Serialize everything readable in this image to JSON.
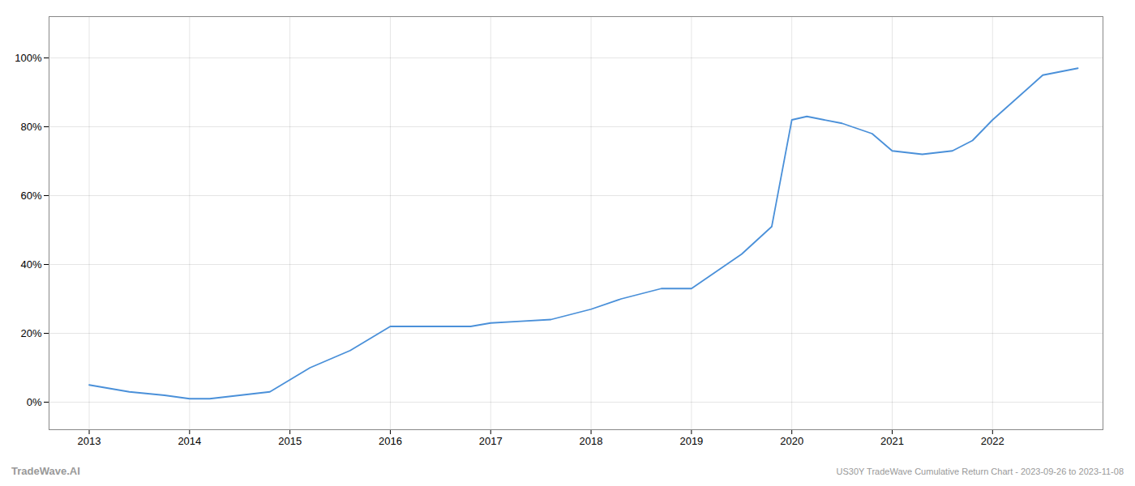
{
  "chart_data": {
    "type": "line",
    "x": [
      2013.0,
      2013.4,
      2013.75,
      2014.0,
      2014.2,
      2014.5,
      2014.8,
      2015.2,
      2015.6,
      2016.0,
      2016.4,
      2016.8,
      2017.0,
      2017.3,
      2017.6,
      2018.0,
      2018.3,
      2018.7,
      2019.0,
      2019.2,
      2019.5,
      2019.8,
      2020.0,
      2020.15,
      2020.5,
      2020.8,
      2021.0,
      2021.3,
      2021.6,
      2021.8,
      2022.0,
      2022.5,
      2022.85
    ],
    "values": [
      0.05,
      0.03,
      0.02,
      0.01,
      0.01,
      0.02,
      0.03,
      0.1,
      0.15,
      0.22,
      0.22,
      0.22,
      0.23,
      0.235,
      0.24,
      0.27,
      0.3,
      0.33,
      0.33,
      0.37,
      0.43,
      0.51,
      0.82,
      0.83,
      0.81,
      0.78,
      0.73,
      0.72,
      0.73,
      0.76,
      0.82,
      0.95,
      0.97
    ],
    "color": "#4a90d9",
    "xlim": [
      2012.6,
      2023.1
    ],
    "xticks": [
      2013,
      2014,
      2015,
      2016,
      2017,
      2018,
      2019,
      2020,
      2021,
      2022
    ],
    "ylim": [
      -0.08,
      1.12
    ],
    "yticks": [
      {
        "value": 0.0,
        "label": "0%"
      },
      {
        "value": 0.2,
        "label": "20%"
      },
      {
        "value": 0.4,
        "label": "40%"
      },
      {
        "value": 0.6,
        "label": "60%"
      },
      {
        "value": 0.8,
        "label": "80%"
      },
      {
        "value": 1.0,
        "label": "100%"
      }
    ],
    "grid": true,
    "annotations": [
      "TradeWave.AI",
      "US30Y TradeWave Cumulative Return Chart - 2023-09-26 to 2023-11-08"
    ]
  }
}
